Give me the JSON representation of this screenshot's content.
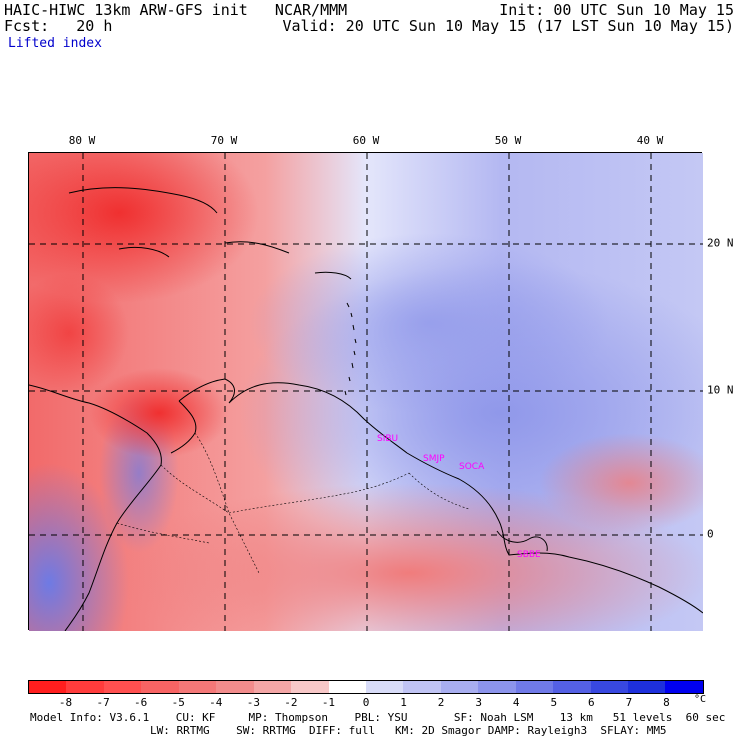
{
  "header": {
    "title_left": "HAIC-HIWC 13km ARW-GFS init   NCAR/MMM",
    "forecast": "Fcst:   20 h",
    "init": "Init: 00 UTC Sun 10 May 15",
    "valid": "Valid: 20 UTC Sun 10 May 15 (17 LST Sun 10 May 15)",
    "field": "Lifted index"
  },
  "map": {
    "lon_labels": [
      "80 W",
      "70 W",
      "60 W",
      "50 W",
      "40 W"
    ],
    "lat_labels": [
      "20 N",
      "10 N",
      "0"
    ],
    "stations": [
      "SIBU",
      "SMJP",
      "SOCA",
      "SBBE"
    ],
    "stations_visible": "faint",
    "colors": {
      "unstable_strong": "#ff0000",
      "unstable_mid": "#f08080",
      "neutral": "#ffffff",
      "stable_mid": "#a0a8f0",
      "stable_strong": "#0000ff"
    }
  },
  "colorbar": {
    "tick_labels": [
      "-8",
      "-7",
      "-6",
      "-5",
      "-4",
      "-3",
      "-2",
      "-1",
      "0",
      "1",
      "2",
      "3",
      "4",
      "5",
      "6",
      "7",
      "8"
    ],
    "unit": "°C",
    "colors": [
      "#ff1e1e",
      "#ff3c3c",
      "#ff5050",
      "#f86464",
      "#f47878",
      "#f28c8c",
      "#f4a6a6",
      "#f8c8c8",
      "#ffffff",
      "#d8dcf8",
      "#c0c4f4",
      "#a8aef0",
      "#8c94ec",
      "#707ae8",
      "#5460e4",
      "#3848e0",
      "#1e30dc",
      "#0000f0"
    ]
  },
  "footer": {
    "line1": "Model Info: V3.6.1    CU: KF     MP: Thompson    PBL: YSU       SF: Noah LSM    13 km   51 levels  60 sec",
    "line2": "LW: RRTMG    SW: RRTMG  DIFF: full   KM: 2D Smagor DAMP: Rayleigh3  SFLAY: MM5"
  }
}
